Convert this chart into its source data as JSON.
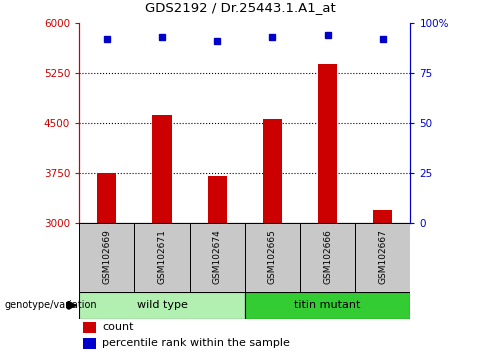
{
  "title": "GDS2192 / Dr.25443.1.A1_at",
  "samples": [
    "GSM102669",
    "GSM102671",
    "GSM102674",
    "GSM102665",
    "GSM102666",
    "GSM102667"
  ],
  "counts": [
    3750,
    4620,
    3700,
    4560,
    5380,
    3200
  ],
  "percentile_ranks": [
    92,
    93,
    91,
    93,
    94,
    92
  ],
  "ylim_left": [
    3000,
    6000
  ],
  "ylim_right": [
    0,
    100
  ],
  "yticks_left": [
    3000,
    3750,
    4500,
    5250,
    6000
  ],
  "yticks_right": [
    0,
    25,
    50,
    75,
    100
  ],
  "ytick_labels_left": [
    "3000",
    "3750",
    "4500",
    "5250",
    "6000"
  ],
  "ytick_labels_right": [
    "0",
    "25",
    "50",
    "75",
    "100%"
  ],
  "bar_color": "#cc0000",
  "marker_color": "#0000cc",
  "groups": [
    {
      "label": "wild type",
      "indices": [
        0,
        1,
        2
      ],
      "color": "#b2f0b2"
    },
    {
      "label": "titin mutant",
      "indices": [
        3,
        4,
        5
      ],
      "color": "#33cc33"
    }
  ],
  "genotype_label": "genotype/variation",
  "legend_count_label": "count",
  "legend_pct_label": "percentile rank within the sample",
  "bar_width": 0.35,
  "grid_color": "black",
  "bg_color": "#ffffff",
  "tick_color_left": "#cc0000",
  "tick_color_right": "#0000cc",
  "cell_bg_color": "#c8c8c8"
}
